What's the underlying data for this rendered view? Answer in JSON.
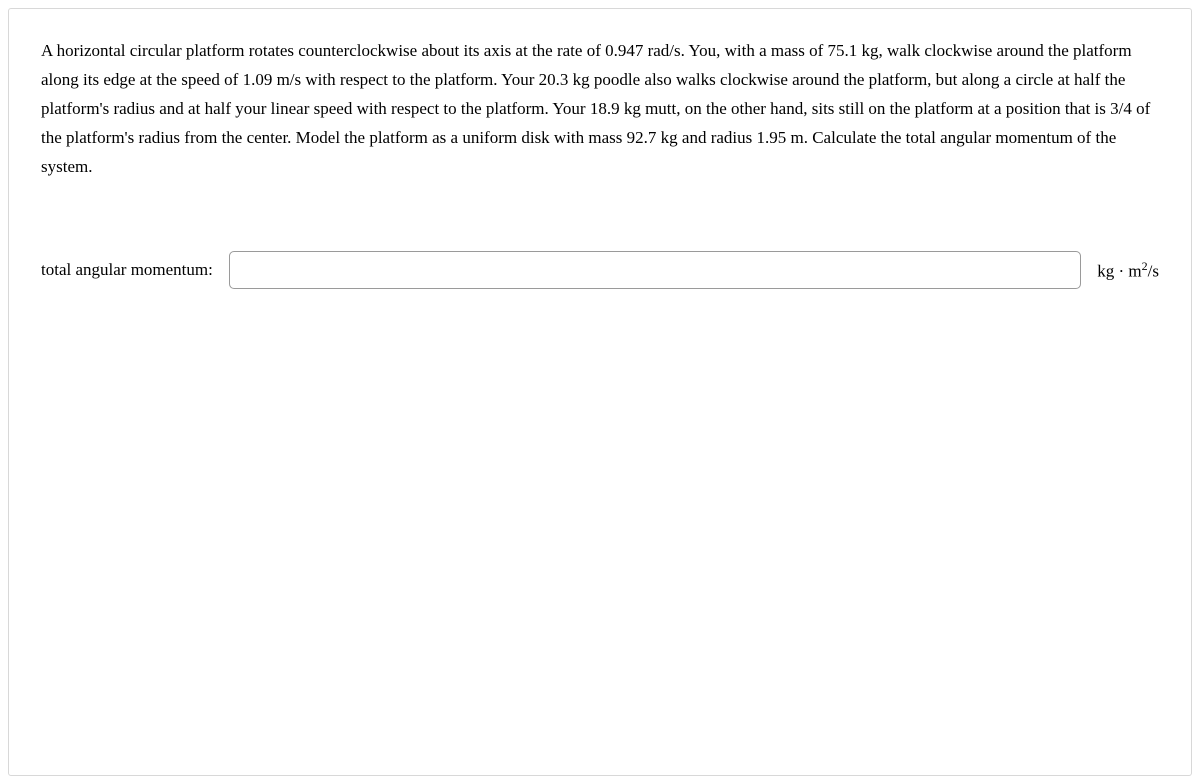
{
  "question": {
    "text": "A horizontal circular platform rotates counterclockwise about its axis at the rate of 0.947 rad/s. You, with a mass of 75.1 kg, walk clockwise around the platform along its edge at the speed of 1.09 m/s with respect to the platform. Your 20.3 kg poodle also walks clockwise around the platform, but along a circle at half the platform's radius and at half your linear speed with respect to the platform. Your 18.9 kg mutt, on the other hand, sits still on the platform at a position that is 3/4 of the platform's radius from the center. Model the platform as a uniform disk with mass 92.7 kg and radius 1.95 m. Calculate the total angular momentum of the system."
  },
  "answer": {
    "label": "total angular momentum:",
    "value": "",
    "units_prefix": "kg · m",
    "units_exponent": "2",
    "units_suffix": "/s"
  },
  "styling": {
    "container_border_color": "#d8d8d8",
    "input_border_color": "#9a9a9a",
    "text_color": "#000000",
    "background_color": "#ffffff",
    "font_family": "Georgia, Times New Roman, serif",
    "question_fontsize": 17,
    "line_height": 1.7
  }
}
